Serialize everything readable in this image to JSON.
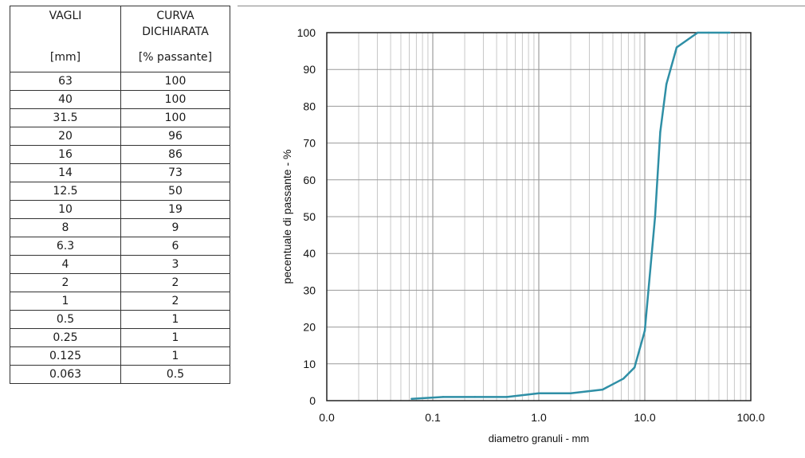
{
  "table": {
    "col1_header": [
      "VAGLI",
      "",
      "[mm]"
    ],
    "col2_header": [
      "CURVA",
      "DICHIARATA",
      "[% passante]"
    ],
    "rows": [
      [
        "63",
        "100"
      ],
      [
        "40",
        "100"
      ],
      [
        "31.5",
        "100"
      ],
      [
        "20",
        "96"
      ],
      [
        "16",
        "86"
      ],
      [
        "14",
        "73"
      ],
      [
        "12.5",
        "50"
      ],
      [
        "10",
        "19"
      ],
      [
        "8",
        "9"
      ],
      [
        "6.3",
        "6"
      ],
      [
        "4",
        "3"
      ],
      [
        "2",
        "2"
      ],
      [
        "1",
        "2"
      ],
      [
        "0.5",
        "1"
      ],
      [
        "0.25",
        "1"
      ],
      [
        "0.125",
        "1"
      ],
      [
        "0.063",
        "0.5"
      ]
    ]
  },
  "chart_data": {
    "type": "line",
    "title": "",
    "xlabel": "diametro granuli - mm",
    "ylabel": "pecentuale di passante - %",
    "xscale": "log",
    "xlim": [
      0.01,
      100
    ],
    "ylim": [
      0,
      100
    ],
    "x_tick_values": [
      0.01,
      0.1,
      1,
      10,
      100
    ],
    "x_tick_labels": [
      "0.0",
      "0.1",
      "1.0",
      "10.0",
      "100.0"
    ],
    "y_ticks": [
      0,
      10,
      20,
      30,
      40,
      50,
      60,
      70,
      80,
      90,
      100
    ],
    "grid": true,
    "line_color": "#2f8fa6",
    "series": [
      {
        "x": [
          0.063,
          0.125,
          0.25,
          0.5,
          1,
          2,
          4,
          6.3,
          8,
          10,
          12.5,
          14,
          16,
          20,
          31.5,
          40,
          63
        ],
        "y": [
          0.5,
          1,
          1,
          1,
          2,
          2,
          3,
          6,
          9,
          19,
          50,
          73,
          86,
          96,
          100,
          100,
          100
        ]
      }
    ]
  }
}
